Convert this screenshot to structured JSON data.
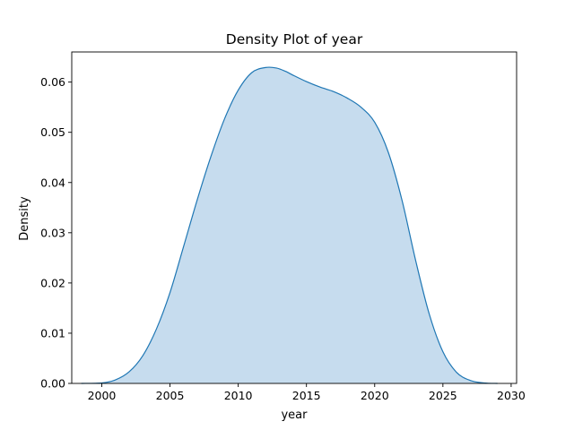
{
  "chart_data": {
    "type": "area",
    "title": "Density Plot of year",
    "xlabel": "year",
    "ylabel": "Density",
    "xlim": [
      1997.8,
      2030.4
    ],
    "ylim": [
      0,
      0.066
    ],
    "x_ticks": [
      2000,
      2005,
      2010,
      2015,
      2020,
      2025,
      2030
    ],
    "y_ticks": [
      0.0,
      0.01,
      0.02,
      0.03,
      0.04,
      0.05,
      0.06
    ],
    "y_tick_labels": [
      "0.00",
      "0.01",
      "0.02",
      "0.03",
      "0.04",
      "0.05",
      "0.06"
    ],
    "grid": false,
    "colors": {
      "line": "#1f77b4",
      "fill": "#c6dcee",
      "axes": "#000000"
    },
    "series": [
      {
        "x": [
          1998.5,
          2000,
          2001,
          2002,
          2003,
          2004,
          2005,
          2006,
          2007,
          2008,
          2009,
          2010,
          2011,
          2012,
          2012.8,
          2013.5,
          2014,
          2015,
          2016,
          2017,
          2018,
          2019,
          2020,
          2021,
          2022,
          2023,
          2024,
          2025,
          2026,
          2027,
          2028,
          2029
        ],
        "y": [
          0.0,
          0.0001,
          0.0007,
          0.0023,
          0.0055,
          0.0108,
          0.0181,
          0.0273,
          0.0366,
          0.0452,
          0.0527,
          0.0584,
          0.0619,
          0.0629,
          0.0628,
          0.0621,
          0.0614,
          0.0601,
          0.059,
          0.0581,
          0.0568,
          0.055,
          0.052,
          0.046,
          0.0365,
          0.0245,
          0.0138,
          0.0063,
          0.0022,
          0.0006,
          0.0001,
          0.0
        ]
      }
    ]
  }
}
